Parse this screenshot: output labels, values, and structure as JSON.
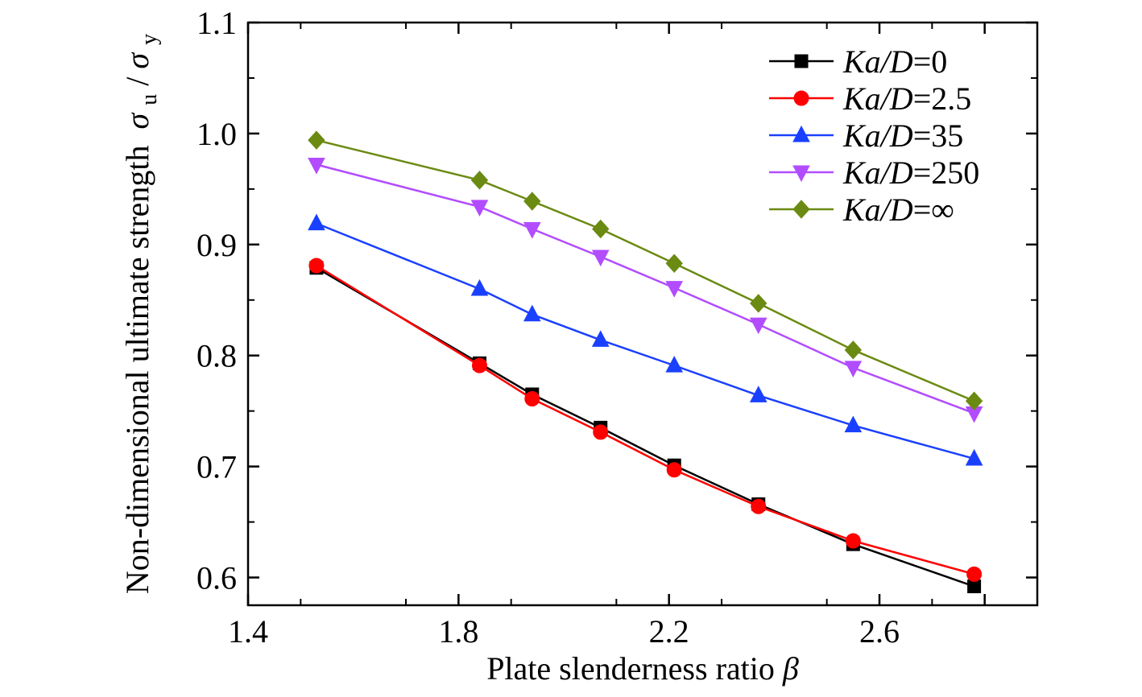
{
  "chart_data": {
    "type": "line",
    "xlabel": "Plate slenderness ratio",
    "xlabel_symbol": "β",
    "ylabel": "Non-dimensional ultimate strength",
    "ylabel_symbol": {
      "num": "σ",
      "num_sub": "u",
      "sep": "/",
      "den": "σ",
      "den_sub": "y"
    },
    "xlim": [
      1.4,
      2.9
    ],
    "ylim": [
      0.575,
      1.1
    ],
    "xticks": [
      1.4,
      1.8,
      2.2,
      2.6
    ],
    "xtick_labels": [
      "1.4",
      "1.8",
      "2.2",
      "2.6"
    ],
    "yticks": [
      0.6,
      0.7,
      0.8,
      0.9,
      1.0,
      1.1
    ],
    "ytick_labels": [
      "0.6",
      "0.7",
      "0.8",
      "0.9",
      "1.0",
      "1.1"
    ],
    "legend_position": "top-right",
    "x": [
      1.53,
      1.84,
      1.94,
      2.07,
      2.21,
      2.37,
      2.55,
      2.78
    ],
    "series": [
      {
        "name": "Ka/D=0",
        "label_parts": [
          "Ka/D",
          "=0"
        ],
        "color": "#000000",
        "marker": "square",
        "values": [
          0.879,
          0.793,
          0.765,
          0.735,
          0.701,
          0.666,
          0.63,
          0.592
        ]
      },
      {
        "name": "Ka/D=2.5",
        "label_parts": [
          "Ka/D",
          "=2.5"
        ],
        "color": "#ff0000",
        "marker": "circle",
        "values": [
          0.881,
          0.791,
          0.761,
          0.731,
          0.697,
          0.664,
          0.633,
          0.603
        ]
      },
      {
        "name": "Ka/D=35",
        "label_parts": [
          "Ka/D",
          "=35"
        ],
        "color": "#1a40ff",
        "marker": "triangle-up",
        "values": [
          0.919,
          0.86,
          0.837,
          0.814,
          0.791,
          0.764,
          0.737,
          0.707
        ]
      },
      {
        "name": "Ka/D=250",
        "label_parts": [
          "Ka/D",
          "=250"
        ],
        "color": "#b24cff",
        "marker": "triangle-down",
        "values": [
          0.972,
          0.934,
          0.914,
          0.889,
          0.861,
          0.828,
          0.789,
          0.748
        ]
      },
      {
        "name": "Ka/D=∞",
        "label_parts": [
          "Ka/D",
          "=∞"
        ],
        "color": "#6b8a12",
        "marker": "diamond",
        "values": [
          0.994,
          0.958,
          0.939,
          0.914,
          0.883,
          0.847,
          0.805,
          0.759
        ]
      }
    ]
  }
}
